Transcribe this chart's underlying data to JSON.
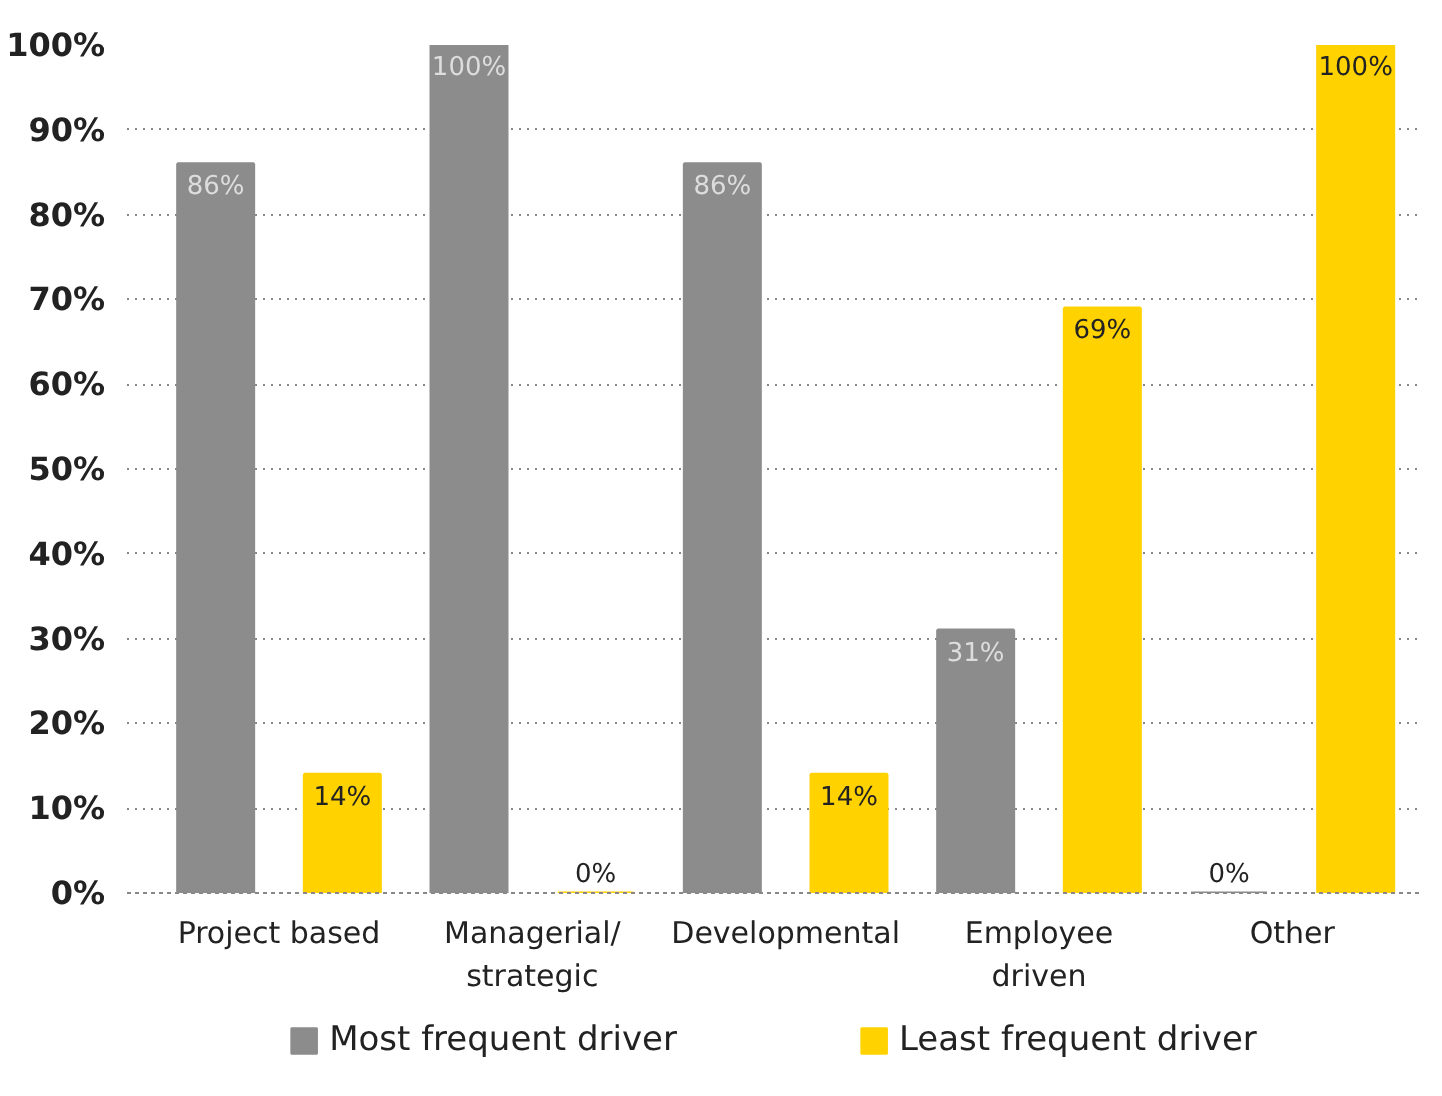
{
  "chart_data": {
    "type": "bar",
    "categories": [
      "Project based",
      "Managerial/\nstrategic",
      "Developmental",
      "Employee\ndriven",
      "Other"
    ],
    "series": [
      {
        "name": "Most frequent driver",
        "color": "#8c8c8c",
        "values": [
          86,
          100,
          86,
          31,
          0
        ],
        "value_labels": [
          "86%",
          "100%",
          "86%",
          "31%",
          "0%"
        ]
      },
      {
        "name": "Least frequent driver",
        "color": "#ffd200",
        "values": [
          14,
          0,
          14,
          69,
          100
        ],
        "value_labels": [
          "14%",
          "0%",
          "14%",
          "69%",
          "100%"
        ]
      }
    ],
    "ylim": [
      0,
      100
    ],
    "yticks": [
      {
        "value": 0,
        "label": "0%"
      },
      {
        "value": 10,
        "label": "10%"
      },
      {
        "value": 20,
        "label": "20%"
      },
      {
        "value": 30,
        "label": "30%"
      },
      {
        "value": 40,
        "label": "40%"
      },
      {
        "value": 50,
        "label": "50%"
      },
      {
        "value": 60,
        "label": "60%"
      },
      {
        "value": 70,
        "label": "70%"
      },
      {
        "value": 80,
        "label": "80%"
      },
      {
        "value": 90,
        "label": "90%"
      },
      {
        "value": 100,
        "label": "100%"
      }
    ],
    "grid": "y",
    "legend": "bottom"
  }
}
